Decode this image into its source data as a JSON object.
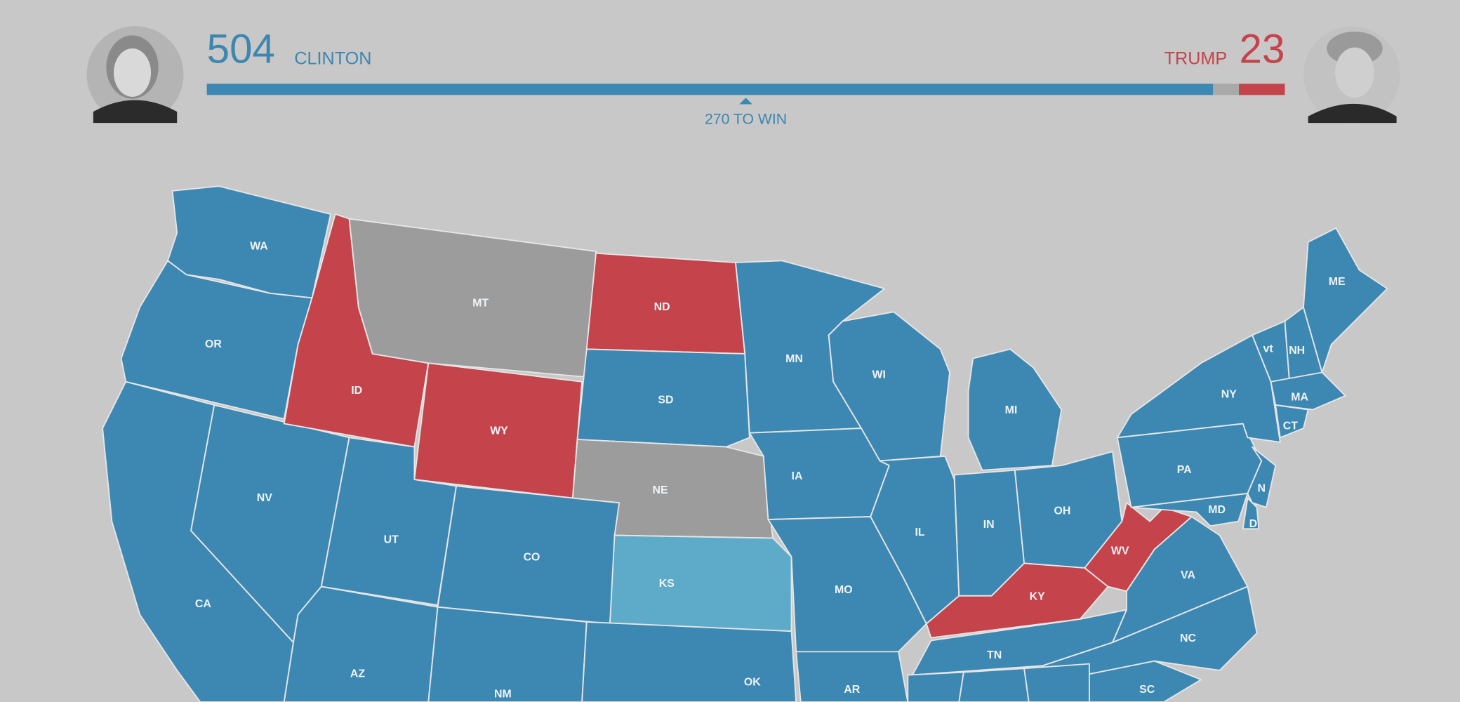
{
  "header": {
    "clinton": {
      "name": "CLINTON",
      "votes": 504
    },
    "trump": {
      "name": "TRUMP",
      "votes": 23
    },
    "threshold": {
      "value": 270,
      "label": "270 TO WIN"
    }
  },
  "map": {
    "colors": {
      "clinton": "#3d88b2",
      "trump": "#c5434b",
      "undecided": "#9c9c9c",
      "lean_clinton": "#5eaac9"
    },
    "states": [
      {
        "label": "WA",
        "status": "clinton"
      },
      {
        "label": "OR",
        "status": "clinton"
      },
      {
        "label": "CA",
        "status": "clinton"
      },
      {
        "label": "NV",
        "status": "clinton"
      },
      {
        "label": "ID",
        "status": "trump"
      },
      {
        "label": "MT",
        "status": "undecided"
      },
      {
        "label": "WY",
        "status": "trump"
      },
      {
        "label": "UT",
        "status": "clinton"
      },
      {
        "label": "CO",
        "status": "clinton"
      },
      {
        "label": "AZ",
        "status": "clinton"
      },
      {
        "label": "NM",
        "status": "clinton"
      },
      {
        "label": "ND",
        "status": "trump"
      },
      {
        "label": "SD",
        "status": "clinton"
      },
      {
        "label": "NE",
        "status": "undecided"
      },
      {
        "label": "KS",
        "status": "lean_clinton"
      },
      {
        "label": "OK",
        "status": "clinton"
      },
      {
        "label": "MN",
        "status": "clinton"
      },
      {
        "label": "IA",
        "status": "clinton"
      },
      {
        "label": "MO",
        "status": "clinton"
      },
      {
        "label": "AR",
        "status": "clinton"
      },
      {
        "label": "WI",
        "status": "clinton"
      },
      {
        "label": "IL",
        "status": "clinton"
      },
      {
        "label": "MI",
        "status": "clinton"
      },
      {
        "label": "IN",
        "status": "clinton"
      },
      {
        "label": "OH",
        "status": "clinton"
      },
      {
        "label": "KY",
        "status": "trump"
      },
      {
        "label": "TN",
        "status": "clinton"
      },
      {
        "label": "WV",
        "status": "trump"
      },
      {
        "label": "VA",
        "status": "clinton"
      },
      {
        "label": "NC",
        "status": "clinton"
      },
      {
        "label": "SC",
        "status": "clinton"
      },
      {
        "label": "PA",
        "status": "clinton"
      },
      {
        "label": "NY",
        "status": "clinton"
      },
      {
        "label": "vt",
        "status": "clinton"
      },
      {
        "label": "NH",
        "status": "clinton"
      },
      {
        "label": "ME",
        "status": "clinton"
      },
      {
        "label": "MA",
        "status": "clinton"
      },
      {
        "label": "CT",
        "status": "clinton"
      },
      {
        "label": "N",
        "status": "clinton"
      },
      {
        "label": "MD",
        "status": "clinton"
      },
      {
        "label": "D",
        "status": "clinton"
      },
      {
        "label": null,
        "status": "clinton"
      },
      {
        "label": null,
        "status": "clinton"
      },
      {
        "label": null,
        "status": "clinton"
      }
    ]
  }
}
